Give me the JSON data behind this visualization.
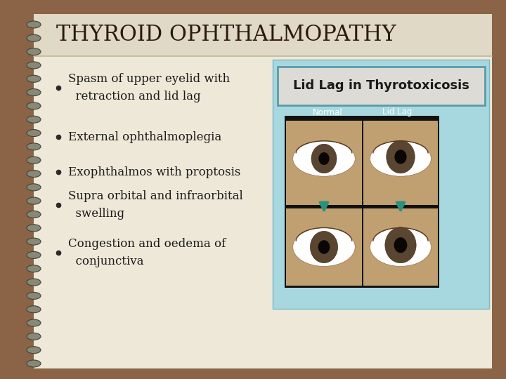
{
  "title": "THYROID OPHTHALMOPATHY",
  "title_color": "#2b1a10",
  "title_fontsize": 22,
  "outer_bg": "#a07050",
  "slide_bg": "#eee8d8",
  "title_bg": "#e8e2d0",
  "spine_color": "#8B6347",
  "bullet_points": [
    "Spasm of upper eyelid with\n  retraction and lid lag",
    "External ophthalmoplegia",
    "Exophthalmos with proptosis",
    "Supra orbital and infraorbital\n  swelling",
    "Congestion and oedema of\n  conjunctiva"
  ],
  "bullet_color": "#1a1a1a",
  "bullet_fontsize": 12,
  "image_box_bg": "#a8d8df",
  "image_label_bg": "#dddbd5",
  "image_label_text": "Lid Lag in Thyrotoxicosis",
  "image_label_border": "#5a9aaa",
  "normal_label": "Normal",
  "lidlag_label": "Lid Lag",
  "arrow_color": "#2a9080",
  "eye_skin": "#c0a070",
  "eye_dark": "#1a0f08",
  "eye_iris": "#5a4530",
  "eye_pupil": "#0a0605"
}
